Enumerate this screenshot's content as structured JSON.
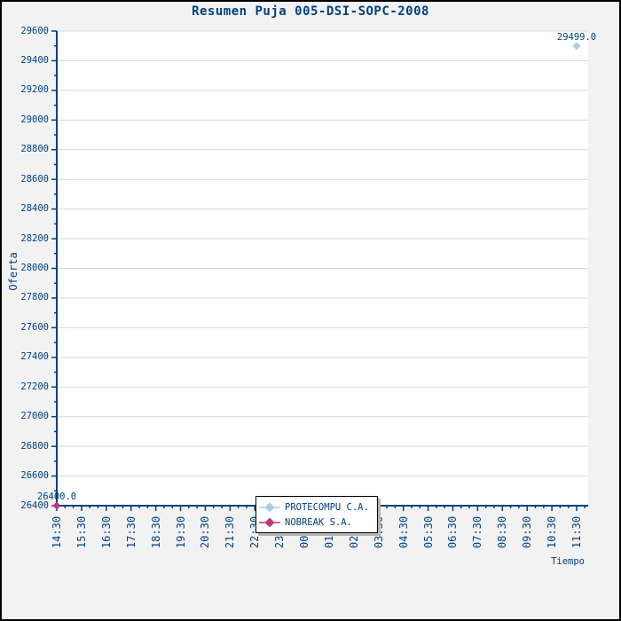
{
  "title": "Resumen Puja 005-DSI-SOPC-2008",
  "chart_data": {
    "type": "scatter",
    "title": "Resumen Puja 005-DSI-SOPC-2008",
    "xlabel": "Tiempo",
    "ylabel": "Oferta",
    "x_categories": [
      "14:30",
      "15:30",
      "16:30",
      "17:30",
      "18:30",
      "19:30",
      "20:30",
      "21:30",
      "22:30",
      "23:30",
      "00:30",
      "01:30",
      "02:30",
      "03:30",
      "04:30",
      "05:30",
      "06:30",
      "07:30",
      "08:30",
      "09:30",
      "10:30",
      "11:30"
    ],
    "ylim": [
      26400,
      29600
    ],
    "y_major_step": 200,
    "y_minor_step": 100,
    "y_tick_labels": [
      "29600",
      "29400",
      "29200",
      "29000",
      "28800",
      "28600",
      "28400",
      "28200",
      "28000",
      "27800",
      "27600",
      "27400",
      "27200",
      "27000",
      "26800",
      "26600",
      "26400"
    ],
    "x_minor_divisions": 3,
    "grid": "horizontal-only",
    "legend_position": "bottom-center",
    "series": [
      {
        "name": "PROTECOMPU C.A.",
        "color": "#a9cfe8",
        "points": [
          {
            "x": "11:30",
            "y": 29499.0,
            "label": "29499.0"
          }
        ]
      },
      {
        "name": "NOBREAK S.A.",
        "color": "#c0357a",
        "points": [
          {
            "x": "14:30",
            "y": 26400.0,
            "label": "26400.0"
          }
        ]
      }
    ]
  },
  "colors": {
    "text": "#004080",
    "axis": "#004080",
    "grid": "#d8d8d8",
    "plot_bg": "#ffffff",
    "page_bg": "#f2f2f2",
    "frame": "#000000",
    "legend_bg": "#ffffff",
    "legend_border": "#000000",
    "legend_shadow": "#b4b4b4"
  }
}
